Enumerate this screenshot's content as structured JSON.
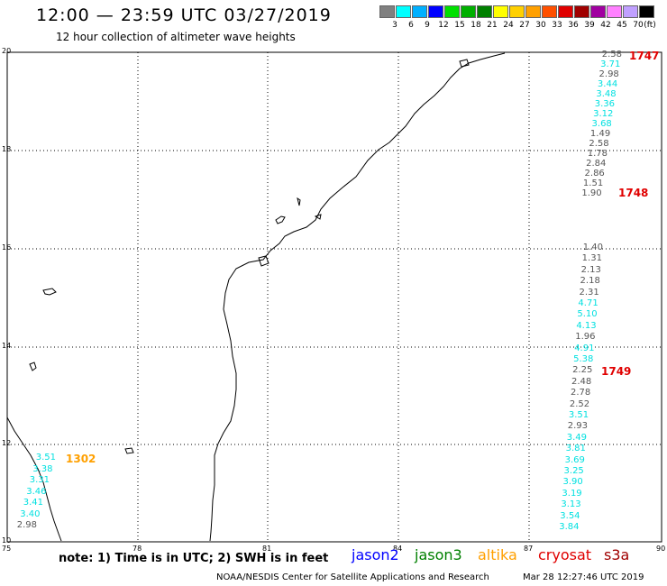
{
  "header": {
    "title": "12:00 — 23:59 UTC 03/27/2019",
    "subtitle": "12 hour collection of altimeter wave heights"
  },
  "legend": {
    "colors": [
      "#808080",
      "#00ffff",
      "#00b0ff",
      "#0000ff",
      "#00e000",
      "#00b000",
      "#008000",
      "#ffff00",
      "#ffd000",
      "#ffa000",
      "#ff5000",
      "#e00000",
      "#a00000",
      "#a000a0",
      "#ff80ff",
      "#c0a0ff",
      "#000000"
    ],
    "labels": [
      "3",
      "6",
      "9",
      "12",
      "15",
      "18",
      "21",
      "24",
      "27",
      "30",
      "33",
      "36",
      "39",
      "42",
      "45",
      "70"
    ],
    "unit": "(ft)"
  },
  "axes": {
    "lon_labels": [
      "75",
      "78",
      "81",
      "84",
      "87",
      "90"
    ],
    "lat_labels": [
      "20",
      "18",
      "16",
      "14",
      "12",
      "10"
    ]
  },
  "passes": [
    {
      "label": "1747",
      "color": "#e00000"
    },
    {
      "label": "1748",
      "color": "#e00000"
    },
    {
      "label": "1749",
      "color": "#e00000"
    },
    {
      "label": "1302",
      "color": "#ffa000"
    }
  ],
  "wave_heights": {
    "track_1747": [
      "2.58",
      "3.71",
      "2.98",
      "3.44",
      "3.48",
      "3.36",
      "3.12",
      "3.68",
      "1.49",
      "2.58",
      "1.78",
      "2.84",
      "2.86",
      "1.51",
      "1.90"
    ],
    "track_1749": [
      "1.40",
      "1.31",
      "2.13",
      "2.18",
      "2.31",
      "4.71",
      "5.10",
      "4.13",
      "1.96",
      "4.91",
      "5.38",
      "2.25",
      "2.48",
      "2.78",
      "2.52",
      "3.51",
      "2.93",
      "3.49",
      "3.81",
      "3.69",
      "3.25",
      "3.90",
      "3.19",
      "3.13",
      "3.54",
      "3.84"
    ],
    "track_1302": [
      "3.51",
      "3.38",
      "3.31",
      "3.46",
      "3.41",
      "3.40",
      "2.98"
    ]
  },
  "footer": {
    "note": "note: 1) Time is in UTC; 2) SWH is in feet",
    "satellites": [
      {
        "name": "jason2",
        "color": "#0000ff"
      },
      {
        "name": "jason3",
        "color": "#008000"
      },
      {
        "name": "altika",
        "color": "#ffa000"
      },
      {
        "name": "cryosat",
        "color": "#e00000"
      },
      {
        "name": "s3a",
        "color": "#a00000"
      }
    ],
    "credit": "NOAA/NESDIS Center for Satellite Applications and Research",
    "timestamp": "Mar 28 12:27:46 UTC 2019"
  }
}
